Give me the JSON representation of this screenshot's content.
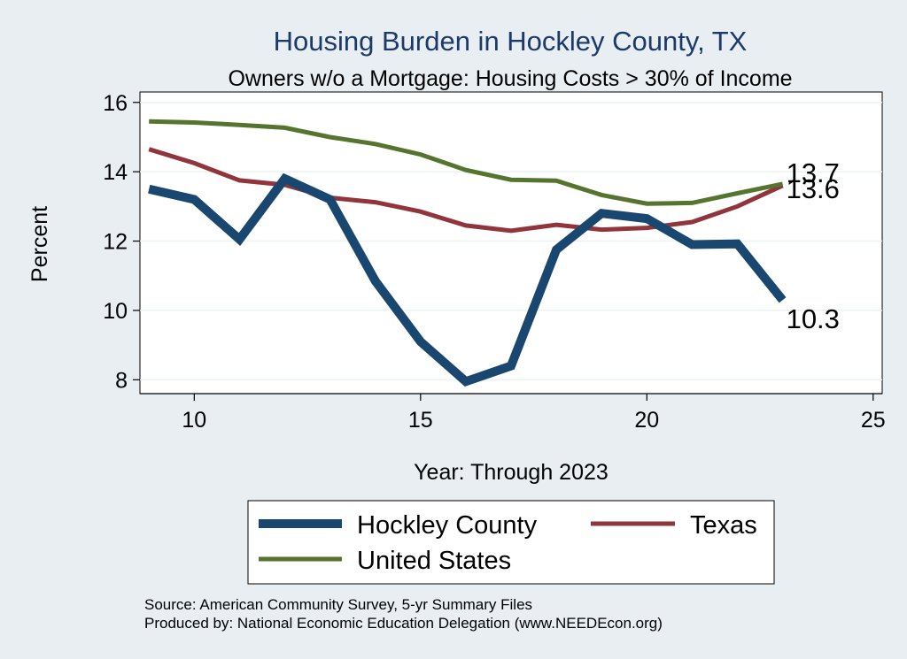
{
  "chart_data": {
    "type": "line",
    "title": "Housing Burden in Hockley County, TX",
    "subtitle": "Owners w/o a Mortgage: Housing Costs > 30% of Income",
    "xlabel": "Year: Through 2023",
    "ylabel": "Percent",
    "xlim": [
      8.8,
      25.2
    ],
    "ylim": [
      7.6,
      16.3
    ],
    "xticks": [
      10,
      15,
      20,
      25
    ],
    "yticks": [
      8,
      10,
      12,
      14,
      16
    ],
    "x": [
      9,
      10,
      11,
      12,
      13,
      14,
      15,
      16,
      17,
      18,
      19,
      20,
      21,
      22,
      23
    ],
    "series": [
      {
        "name": "Hockley County",
        "color": "#1a476f",
        "width": "thick",
        "values": [
          13.5,
          13.2,
          12.05,
          13.8,
          13.2,
          10.85,
          9.1,
          7.95,
          8.4,
          11.75,
          12.8,
          12.65,
          11.9,
          11.92,
          10.3
        ],
        "end_label": "10.3"
      },
      {
        "name": "Texas",
        "color": "#90353b",
        "width": "thin",
        "values": [
          14.65,
          14.25,
          13.75,
          13.62,
          13.25,
          13.12,
          12.85,
          12.45,
          12.3,
          12.47,
          12.33,
          12.38,
          12.55,
          13.0,
          13.6
        ],
        "end_label": "13.6"
      },
      {
        "name": "United States",
        "color": "#55752f",
        "width": "thin",
        "values": [
          15.45,
          15.42,
          15.35,
          15.27,
          15.0,
          14.8,
          14.5,
          14.05,
          13.77,
          13.74,
          13.33,
          13.08,
          13.1,
          13.38,
          13.65
        ],
        "end_label": "13.7"
      }
    ],
    "legend_position": "bottom"
  },
  "source_lines": [
    "Source: American Community Survey, 5-yr Summary Files",
    "Produced by: National Economic Education Delegation (www.NEEDEcon.org)"
  ]
}
